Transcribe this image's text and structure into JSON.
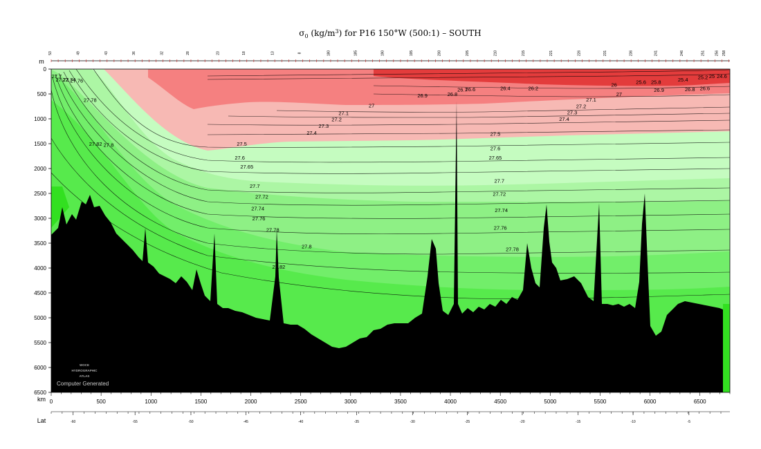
{
  "chart_data": {
    "type": "contour-section",
    "title": {
      "symbol": "σ",
      "subscript": "0",
      "units_pre": " (kg/m",
      "units_sup": "3",
      "units_post": ") for P16 150°W (500:1) – SOUTH"
    },
    "y_axis_label": "m",
    "x_axis_label": "km",
    "lat_axis_label": "Lat",
    "x_range_km": [
      0,
      6800
    ],
    "y_range_m": [
      0,
      6500
    ],
    "x_ticks_km": [
      0,
      500,
      1000,
      1500,
      2000,
      2500,
      3000,
      3500,
      4000,
      4500,
      5000,
      5500,
      6000,
      6500
    ],
    "y_ticks_m": [
      0,
      500,
      1000,
      1500,
      2000,
      2500,
      3000,
      3500,
      4000,
      4500,
      5000,
      5500,
      6000,
      6500
    ],
    "lat_ticks": [
      {
        "km": 220,
        "label": "-60"
      },
      {
        "km": 840,
        "label": "-55"
      },
      {
        "km": 1400,
        "label": "-50"
      },
      {
        "km": 1950,
        "label": "-45"
      },
      {
        "km": 2500,
        "label": "-40"
      },
      {
        "km": 3060,
        "label": "-35"
      },
      {
        "km": 3620,
        "label": "-30"
      },
      {
        "km": 4170,
        "label": "-25"
      },
      {
        "km": 4720,
        "label": "-20"
      },
      {
        "km": 5280,
        "label": "-15"
      },
      {
        "km": 5830,
        "label": "-10"
      },
      {
        "km": 6390,
        "label": "-5"
      }
    ],
    "stations": [
      {
        "km": 0,
        "label": "53"
      },
      {
        "km": 280,
        "label": "49"
      },
      {
        "km": 560,
        "label": "43"
      },
      {
        "km": 840,
        "label": "36"
      },
      {
        "km": 1120,
        "label": "32"
      },
      {
        "km": 1380,
        "label": "28"
      },
      {
        "km": 1680,
        "label": "23"
      },
      {
        "km": 1940,
        "label": "18"
      },
      {
        "km": 2230,
        "label": "13"
      },
      {
        "km": 2500,
        "label": "8"
      },
      {
        "km": 2790,
        "label": "180"
      },
      {
        "km": 3060,
        "label": "185"
      },
      {
        "km": 3330,
        "label": "190"
      },
      {
        "km": 3620,
        "label": "195"
      },
      {
        "km": 3900,
        "label": "200"
      },
      {
        "km": 4180,
        "label": "205"
      },
      {
        "km": 4460,
        "label": "210"
      },
      {
        "km": 4740,
        "label": "215"
      },
      {
        "km": 5020,
        "label": "221"
      },
      {
        "km": 5300,
        "label": "226"
      },
      {
        "km": 5560,
        "label": "231"
      },
      {
        "km": 5820,
        "label": "236"
      },
      {
        "km": 6070,
        "label": "241"
      },
      {
        "km": 6330,
        "label": "246"
      },
      {
        "km": 6540,
        "label": "251"
      },
      {
        "km": 6680,
        "label": "256"
      },
      {
        "km": 6750,
        "label": "258"
      }
    ],
    "contour_labels": [
      {
        "value": "27.7",
        "km": 55,
        "depth": 140
      },
      {
        "value": "27.72",
        "km": 110,
        "depth": 210
      },
      {
        "value": "27.74",
        "km": 180,
        "depth": 210
      },
      {
        "value": "27.76",
        "km": 255,
        "depth": 230
      },
      {
        "value": "27.78",
        "km": 390,
        "depth": 620
      },
      {
        "value": "27.82",
        "km": 445,
        "depth": 1500
      },
      {
        "value": "27.8",
        "km": 575,
        "depth": 1520
      },
      {
        "value": "27.5",
        "km": 1910,
        "depth": 1500
      },
      {
        "value": "27.6",
        "km": 1890,
        "depth": 1780
      },
      {
        "value": "27.65",
        "km": 1960,
        "depth": 1960
      },
      {
        "value": "27.7",
        "km": 2040,
        "depth": 2350
      },
      {
        "value": "27.72",
        "km": 2110,
        "depth": 2560
      },
      {
        "value": "27.74",
        "km": 2070,
        "depth": 2800
      },
      {
        "value": "27.76",
        "km": 2080,
        "depth": 3000
      },
      {
        "value": "27.78",
        "km": 2220,
        "depth": 3230
      },
      {
        "value": "27.8",
        "km": 2560,
        "depth": 3560
      },
      {
        "value": "27.82",
        "km": 2280,
        "depth": 3970
      },
      {
        "value": "27.1",
        "km": 2930,
        "depth": 880
      },
      {
        "value": "27.2",
        "km": 2860,
        "depth": 1010
      },
      {
        "value": "27.3",
        "km": 2730,
        "depth": 1140
      },
      {
        "value": "27.4",
        "km": 2610,
        "depth": 1280
      },
      {
        "value": "27",
        "km": 3210,
        "depth": 730
      },
      {
        "value": "26.9",
        "km": 3720,
        "depth": 530
      },
      {
        "value": "26.8",
        "km": 4020,
        "depth": 500
      },
      {
        "value": "26.7",
        "km": 4120,
        "depth": 410
      },
      {
        "value": "26.6",
        "km": 4200,
        "depth": 400
      },
      {
        "value": "26.4",
        "km": 4550,
        "depth": 380
      },
      {
        "value": "26.2",
        "km": 4830,
        "depth": 380
      },
      {
        "value": "26",
        "km": 5640,
        "depth": 310
      },
      {
        "value": "25.6",
        "km": 5910,
        "depth": 260
      },
      {
        "value": "25.8",
        "km": 6060,
        "depth": 260
      },
      {
        "value": "25.4",
        "km": 6330,
        "depth": 210
      },
      {
        "value": "25.2",
        "km": 6530,
        "depth": 160
      },
      {
        "value": "25",
        "km": 6620,
        "depth": 140
      },
      {
        "value": "24.6",
        "km": 6720,
        "depth": 140
      },
      {
        "value": "26.9",
        "km": 6090,
        "depth": 420
      },
      {
        "value": "26.8",
        "km": 6400,
        "depth": 400
      },
      {
        "value": "26.6",
        "km": 6550,
        "depth": 380
      },
      {
        "value": "27",
        "km": 5690,
        "depth": 500
      },
      {
        "value": "27.1",
        "km": 5410,
        "depth": 610
      },
      {
        "value": "27.2",
        "km": 5310,
        "depth": 740
      },
      {
        "value": "27.3",
        "km": 5220,
        "depth": 870
      },
      {
        "value": "27.4",
        "km": 5140,
        "depth": 1000
      },
      {
        "value": "27.5",
        "km": 4450,
        "depth": 1300
      },
      {
        "value": "27.6",
        "km": 4450,
        "depth": 1590
      },
      {
        "value": "27.65",
        "km": 4450,
        "depth": 1780
      },
      {
        "value": "27.7",
        "km": 4490,
        "depth": 2240
      },
      {
        "value": "27.72",
        "km": 4490,
        "depth": 2510
      },
      {
        "value": "27.74",
        "km": 4510,
        "depth": 2830
      },
      {
        "value": "27.76",
        "km": 4500,
        "depth": 3190
      },
      {
        "value": "27.78",
        "km": 4620,
        "depth": 3620
      }
    ],
    "logo_lines": [
      "WOCE",
      "HYDROGRAPHIC",
      "ATLAS"
    ],
    "watermark": "Computer Generated",
    "colors": {
      "red_deep": "#e33c3c",
      "red_mid": "#f58080",
      "red_light": "#f7b9b4",
      "green_pale": "#c5fcc0",
      "green_light": "#acf6a4",
      "green_mid": "#8ef085",
      "green_strong": "#72ee6a",
      "green_deep": "#57ea4c",
      "green_bright": "#32e020",
      "bottom": "#000000"
    }
  }
}
